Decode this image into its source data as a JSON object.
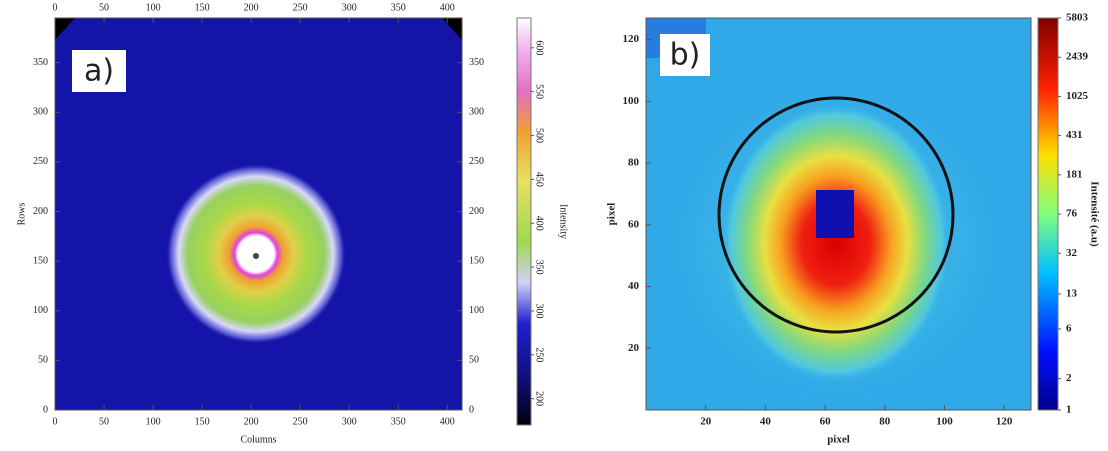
{
  "chart_data": [
    {
      "type": "heatmap",
      "panel_label": "a)",
      "x_label": "Columns",
      "y_label": "Rows",
      "xlim": [
        0,
        415
      ],
      "ylim": [
        0,
        395
      ],
      "xticks": [
        0,
        50,
        100,
        150,
        200,
        250,
        300,
        350,
        400
      ],
      "yticks": [
        0,
        50,
        100,
        150,
        200,
        250,
        300,
        350
      ],
      "mirror_axes": true,
      "colorbar_label": "Intensity",
      "clim": [
        170,
        634
      ],
      "cticks": [
        200,
        250,
        300,
        350,
        400,
        450,
        500,
        550,
        600
      ],
      "log_color_scale": false
    },
    {
      "type": "heatmap",
      "panel_label": "b)",
      "x_label": "pixel",
      "y_label": "pixel",
      "xlim": [
        0,
        129
      ],
      "ylim": [
        0,
        127
      ],
      "xticks": [
        20,
        40,
        60,
        80,
        100,
        120
      ],
      "yticks": [
        20,
        40,
        60,
        80,
        100,
        120
      ],
      "mirror_axes": false,
      "colorbar_label": "Intensité (a.u)",
      "clim": [
        1,
        5803
      ],
      "cticks": [
        1,
        2,
        6,
        13,
        32,
        76,
        181,
        431,
        1025,
        2439,
        5803
      ],
      "log_color_scale": true
    }
  ]
}
